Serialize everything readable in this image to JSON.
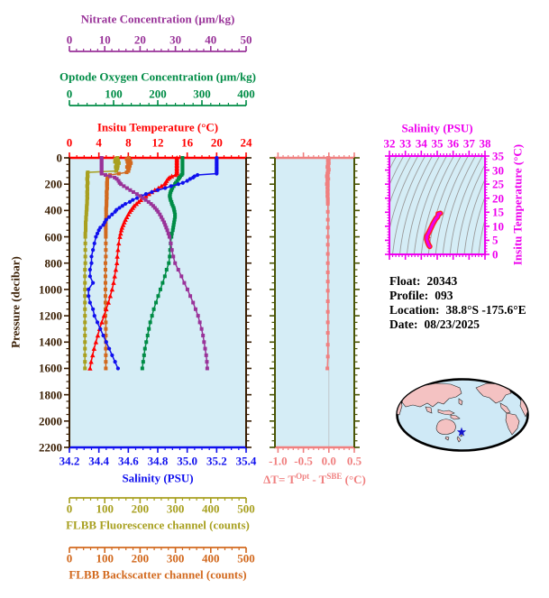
{
  "pressure_axis": {
    "title": "Pressure (decibar)",
    "range": [
      0,
      2200
    ],
    "tick_values": [
      0,
      200,
      400,
      600,
      800,
      1000,
      1200,
      1400,
      1600,
      1800,
      2000,
      2200
    ],
    "tick_labels": [
      "0",
      "200",
      "400",
      "600",
      "800",
      "1000",
      "1200",
      "1400",
      "1600",
      "1800",
      "2000",
      "2200"
    ],
    "minor_step": 50,
    "color": "#3A1F04"
  },
  "top_axes": [
    {
      "id": "nitrate",
      "title": "Nitrate Concentration (µm/kg)",
      "color": "#993399",
      "range": [
        0,
        50
      ],
      "tick_values": [
        0,
        10,
        20,
        30,
        40,
        50
      ],
      "tick_labels": [
        "0",
        "10",
        "20",
        "30",
        "40",
        "50"
      ],
      "minor_step": 2
    },
    {
      "id": "oxygen",
      "title": "Optode Oxygen Concentration (µm/kg)",
      "color": "#008C46",
      "range": [
        0,
        400
      ],
      "tick_values": [
        0,
        100,
        200,
        300,
        400
      ],
      "tick_labels": [
        "0",
        "100",
        "200",
        "300",
        "400"
      ],
      "minor_step": 20
    },
    {
      "id": "temperature",
      "title": "Insitu Temperature (°C)",
      "color": "#FF0000",
      "range": [
        0,
        24
      ],
      "tick_values": [
        0,
        4,
        8,
        12,
        16,
        20,
        24
      ],
      "tick_labels": [
        "0",
        "4",
        "8",
        "12",
        "16",
        "20",
        "24"
      ],
      "minor_step": 1
    }
  ],
  "bottom_axes": [
    {
      "id": "salinity",
      "title": "Salinity (PSU)",
      "color": "#1010EE",
      "range": [
        34.2,
        35.4
      ],
      "tick_values": [
        34.2,
        34.4,
        34.6,
        34.8,
        35.0,
        35.2,
        35.4
      ],
      "tick_labels": [
        "34.2",
        "34.4",
        "34.6",
        "34.8",
        "35.0",
        "35.2",
        "35.4"
      ],
      "minor_step": 0.05
    },
    {
      "id": "fluorescence",
      "title": "FLBB Fluorescence channel (counts)",
      "color": "#A8A020",
      "range": [
        0,
        500
      ],
      "tick_values": [
        0,
        100,
        200,
        300,
        400,
        500
      ],
      "tick_labels": [
        "0",
        "100",
        "200",
        "300",
        "400",
        "500"
      ],
      "minor_step": 20
    },
    {
      "id": "backscatter",
      "title": "FLBB Backscatter channel (counts)",
      "color": "#D2691E",
      "range": [
        0,
        500
      ],
      "tick_values": [
        0,
        100,
        200,
        300,
        400,
        500
      ],
      "tick_labels": [
        "0",
        "100",
        "200",
        "300",
        "400",
        "500"
      ],
      "minor_step": 20
    }
  ],
  "delta_panel": {
    "title_parts": {
      "p1": "ΔT= T",
      "sup1": "Opt",
      "p2": " - T",
      "sup2": "SBE",
      "p3": " (°C)"
    },
    "range": [
      -1.06,
      0.5
    ],
    "tick_values": [
      -1.0,
      -0.5,
      0.0,
      0.5
    ],
    "tick_labels": [
      "-1.0",
      "-0.5",
      "0.0",
      "0.5"
    ],
    "minor_step": 0.1,
    "axis_color": "#F08080",
    "spine_color": "#4A5506",
    "zero_line_color": "#C0C8CC",
    "background": "#D5EDF6"
  },
  "ts_panel": {
    "x_title": "Salinity (PSU)",
    "y_title": "Insitu Temperature (°C)",
    "x_range": [
      32,
      38
    ],
    "x_tick_values": [
      32,
      33,
      34,
      35,
      36,
      37,
      38
    ],
    "x_tick_labels": [
      "32",
      "33",
      "34",
      "35",
      "36",
      "37",
      "38"
    ],
    "x_minor": 0.2,
    "y_range": [
      0,
      35
    ],
    "y_tick_values": [
      0,
      5,
      10,
      15,
      20,
      25,
      30,
      35
    ],
    "y_tick_labels": [
      "0",
      "5",
      "10",
      "15",
      "20",
      "25",
      "30",
      "35"
    ],
    "y_minor": 1,
    "frame_color": "#EE00EE",
    "contour_color": "#9B9B9B",
    "curve_color": "#EE00EE",
    "curve_edge_color": "#FF2020",
    "background": "#D5EDF6"
  },
  "main_panel": {
    "background": "#D5EDF6"
  },
  "info": {
    "rows": [
      {
        "label": "Float:",
        "value": "20343"
      },
      {
        "label": "Profile:",
        "value": "093"
      },
      {
        "label": "Location:",
        "value": "38.8°S  -175.6°E"
      },
      {
        "label": "Date:",
        "value": "08/23/2025"
      }
    ]
  },
  "map": {
    "ocean": "#CFE9F6",
    "land": "#F4C2C2",
    "outline": "#000000",
    "star_color": "#1414CC"
  },
  "chart_data": {
    "type": "line",
    "orientation": "vertical-profile",
    "title": "",
    "ylabel": "Pressure (decibar)",
    "ylim": [
      0,
      2200
    ],
    "pressures": [
      0,
      10,
      20,
      30,
      40,
      50,
      60,
      70,
      80,
      90,
      100,
      110,
      120,
      130,
      140,
      150,
      160,
      175,
      190,
      200,
      215,
      230,
      245,
      260,
      275,
      290,
      305,
      320,
      335,
      350,
      365,
      380,
      395,
      410,
      430,
      450,
      470,
      490,
      510,
      530,
      550,
      575,
      600,
      650,
      700,
      750,
      800,
      850,
      900,
      950,
      1000,
      1050,
      1100,
      1150,
      1200,
      1250,
      1300,
      1350,
      1400,
      1450,
      1500,
      1550,
      1600
    ],
    "series": [
      {
        "name": "FLBB Fluorescence channel",
        "unit": "counts",
        "color": "#A8A020",
        "marker": "square",
        "range": [
          0,
          500
        ],
        "values": [
          136,
          130,
          138,
          129,
          140,
          133,
          137,
          131,
          136,
          133,
          132,
          52,
          51,
          51,
          52,
          51,
          50,
          51,
          52,
          51,
          50,
          51,
          51,
          50,
          51,
          50,
          51,
          50,
          50,
          50,
          49,
          49,
          49,
          48,
          48,
          47,
          47,
          46,
          46,
          46,
          46,
          45,
          45,
          45,
          45,
          45,
          45,
          44,
          44,
          44,
          44,
          44,
          44,
          44,
          44,
          44,
          44,
          44,
          44,
          44,
          44,
          44,
          44
        ]
      },
      {
        "name": "FLBB Backscatter channel",
        "unit": "counts",
        "color": "#D2691E",
        "marker": "square",
        "range": [
          0,
          500
        ],
        "values": [
          168,
          162,
          172,
          164,
          174,
          166,
          171,
          163,
          169,
          166,
          167,
          162,
          140,
          115,
          110,
          108,
          107,
          107,
          106,
          107,
          106,
          107,
          106,
          105,
          106,
          105,
          106,
          105,
          105,
          105,
          105,
          104,
          104,
          104,
          104,
          104,
          103,
          103,
          103,
          103,
          103,
          103,
          103,
          103,
          103,
          103,
          102,
          102,
          102,
          102,
          102,
          102,
          102,
          102,
          102,
          103,
          103,
          103,
          103,
          103,
          103,
          103,
          103
        ]
      },
      {
        "name": "Optode Oxygen Concentration",
        "unit": "µm/kg",
        "color": "#008C46",
        "marker": "square",
        "range": [
          0,
          400
        ],
        "values": [
          256,
          256,
          256,
          256,
          256,
          256,
          256,
          256,
          256,
          256,
          256,
          256,
          256,
          254,
          251,
          249,
          247,
          244,
          241,
          239,
          236,
          233,
          231,
          229,
          228,
          227,
          228,
          229,
          231,
          232,
          234,
          236,
          237,
          238,
          239,
          239,
          238,
          237,
          236,
          235,
          234,
          232,
          231,
          229,
          228,
          227,
          225,
          220,
          216,
          211,
          206,
          201,
          196,
          191,
          187,
          183,
          180,
          177,
          174,
          171,
          169,
          167,
          165
        ]
      },
      {
        "name": "Insitu Temperature",
        "unit": "°C",
        "color": "#FF0000",
        "marker": "triangle",
        "range": [
          0,
          24
        ],
        "values": [
          14.6,
          14.6,
          14.6,
          14.6,
          14.6,
          14.6,
          14.6,
          14.6,
          14.6,
          14.6,
          14.6,
          14.6,
          14.6,
          14.4,
          13.9,
          13.6,
          13.4,
          13.2,
          13.05,
          12.9,
          12.5,
          12.1,
          11.6,
          11.2,
          10.8,
          10.4,
          10.0,
          9.7,
          9.4,
          9.1,
          8.8,
          8.6,
          8.4,
          8.2,
          8.0,
          7.8,
          7.6,
          7.45,
          7.3,
          7.15,
          7.05,
          6.95,
          6.85,
          6.7,
          6.6,
          6.5,
          6.45,
          6.3,
          6.15,
          6.0,
          5.8,
          5.55,
          5.3,
          5.0,
          4.7,
          4.4,
          4.1,
          3.85,
          3.6,
          3.35,
          3.15,
          2.95,
          2.8
        ]
      },
      {
        "name": "Salinity",
        "unit": "PSU",
        "color": "#1010EE",
        "marker": "circle",
        "range": [
          34.2,
          35.4
        ],
        "values": [
          35.2,
          35.2,
          35.2,
          35.2,
          35.2,
          35.2,
          35.2,
          35.2,
          35.2,
          35.2,
          35.2,
          35.2,
          35.2,
          35.07,
          35.05,
          35.04,
          35.02,
          35.0,
          34.97,
          34.94,
          34.89,
          34.85,
          34.8,
          34.76,
          34.72,
          34.69,
          34.66,
          34.63,
          34.61,
          34.58,
          34.56,
          34.54,
          34.52,
          34.51,
          34.49,
          34.47,
          34.45,
          34.44,
          34.43,
          34.41,
          34.4,
          34.39,
          34.38,
          34.37,
          34.36,
          34.35,
          34.35,
          34.34,
          34.34,
          34.36,
          34.33,
          34.33,
          34.34,
          34.36,
          34.37,
          34.39,
          34.41,
          34.43,
          34.45,
          34.47,
          34.49,
          34.51,
          34.53
        ]
      },
      {
        "name": "Nitrate Concentration",
        "unit": "µm/kg",
        "color": "#993399",
        "marker": "square",
        "range": [
          0,
          50
        ],
        "values": [
          9.1,
          9.1,
          9.1,
          9.1,
          9.1,
          9.1,
          9.1,
          9.1,
          9.1,
          9.1,
          9.1,
          9.1,
          9.1,
          10.2,
          11.5,
          12.8,
          13.4,
          13.9,
          14.2,
          14.6,
          15.4,
          16.3,
          17.2,
          18.1,
          19.1,
          20.0,
          20.8,
          21.6,
          22.4,
          23.1,
          23.7,
          24.2,
          24.7,
          25.1,
          25.6,
          26.0,
          26.4,
          26.8,
          27.1,
          27.4,
          27.7,
          28.0,
          28.3,
          28.7,
          29.0,
          29.4,
          29.9,
          30.8,
          31.7,
          32.5,
          33.4,
          34.2,
          35.0,
          35.7,
          36.4,
          36.9,
          37.4,
          37.8,
          38.1,
          38.4,
          38.7,
          38.9,
          39.0
        ]
      }
    ],
    "delta_t_series": {
      "name": "ΔT = T Optode - T SBE",
      "unit": "°C",
      "color": "#F08080",
      "marker": "square",
      "points": [
        [
          0,
          -0.01
        ],
        [
          10,
          0
        ],
        [
          20,
          -0.02
        ],
        [
          30,
          -0.01
        ],
        [
          40,
          0
        ],
        [
          50,
          -0.02
        ],
        [
          60,
          -0.01
        ],
        [
          70,
          -0.03
        ],
        [
          80,
          -0.01
        ],
        [
          90,
          0
        ],
        [
          100,
          -0.02
        ],
        [
          110,
          -0.01
        ],
        [
          120,
          -0.03
        ],
        [
          130,
          -0.02
        ],
        [
          140,
          -0.04
        ],
        [
          150,
          -0.03
        ],
        [
          160,
          -0.01
        ],
        [
          175,
          -0.03
        ],
        [
          190,
          -0.02
        ],
        [
          200,
          -0.04
        ],
        [
          215,
          -0.02
        ],
        [
          230,
          -0.03
        ],
        [
          245,
          -0.02
        ],
        [
          260,
          -0.03
        ],
        [
          275,
          -0.02
        ],
        [
          290,
          -0.03
        ],
        [
          305,
          -0.02
        ],
        [
          320,
          -0.02
        ],
        [
          335,
          -0.02
        ],
        [
          350,
          -0.02
        ],
        [
          410,
          -0.02
        ],
        [
          470,
          -0.02
        ],
        [
          530,
          -0.02
        ],
        [
          600,
          -0.02
        ],
        [
          660,
          -0.02
        ],
        [
          730,
          -0.02
        ],
        [
          800,
          -0.02
        ],
        [
          870,
          -0.02
        ],
        [
          940,
          -0.02
        ],
        [
          1010,
          -0.02
        ],
        [
          1090,
          -0.02
        ],
        [
          1170,
          -0.02
        ],
        [
          1250,
          -0.02
        ],
        [
          1330,
          -0.02
        ],
        [
          1420,
          -0.02
        ],
        [
          1510,
          -0.02
        ],
        [
          1600,
          -0.03
        ]
      ]
    },
    "ts_curve": {
      "note": "salinity-vs-temperature curve derived from the Salinity and Insitu Temperature profiles above"
    }
  }
}
